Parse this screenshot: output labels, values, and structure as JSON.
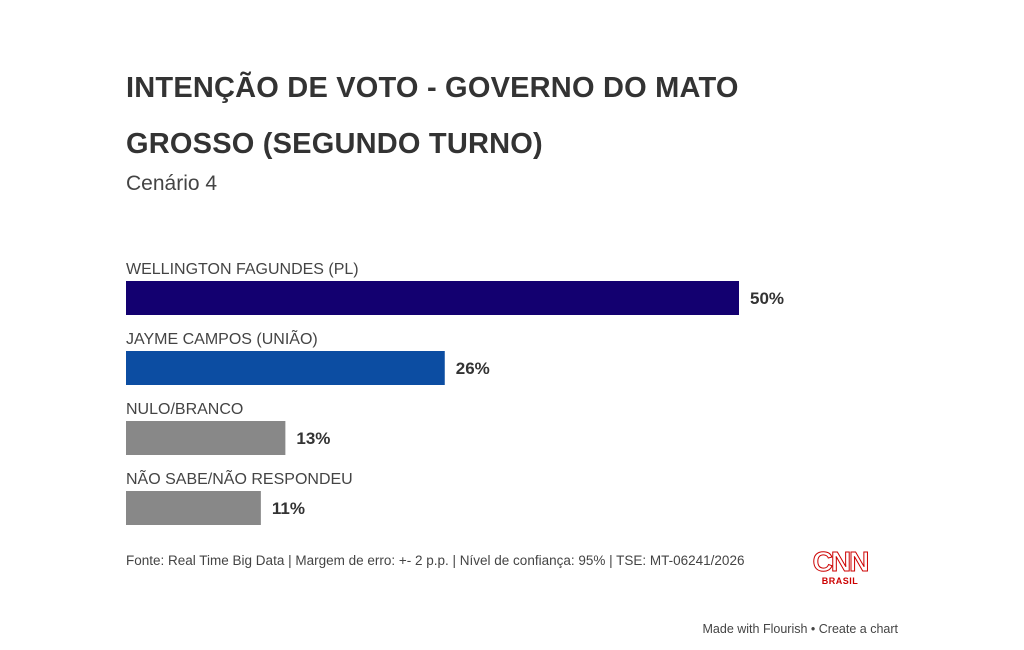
{
  "chart_data": {
    "type": "bar",
    "orientation": "horizontal",
    "title": "INTENÇÃO DE VOTO - GOVERNO DO MATO GROSSO (SEGUNDO TURNO)",
    "subtitle": "Cenário 4",
    "categories": [
      "WELLINGTON FAGUNDES (PL)",
      "JAYME CAMPOS (UNIÃO)",
      "NULO/BRANCO",
      "NÃO SABE/NÃO RESPONDEU"
    ],
    "values": [
      50,
      26,
      13,
      11
    ],
    "value_labels": [
      "50%",
      "26%",
      "13%",
      "11%"
    ],
    "colors": [
      "#130070",
      "#0c4da2",
      "#888888",
      "#888888"
    ],
    "unit": "%",
    "grid": false,
    "xlim": [
      0,
      50
    ]
  },
  "footer": {
    "source": "Fonte: Real Time Big Data | Margem de erro: +- 2 p.p. | Nível de confiança: 95% | TSE: MT-06241/2026"
  },
  "logo": {
    "text": "CNN",
    "subtext": "BRASIL",
    "color": "#cc0000"
  },
  "credit": {
    "made_with": "Made with Flourish",
    "separator": "•",
    "create": "Create a chart"
  }
}
